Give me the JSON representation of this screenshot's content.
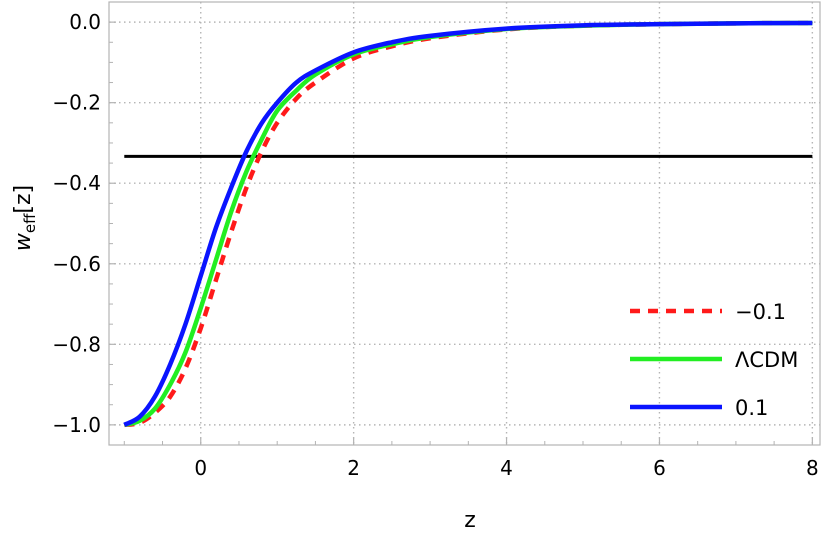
{
  "chart_data": {
    "type": "line",
    "xlabel": "z",
    "ylabel_main": "w",
    "ylabel_sub": "eff",
    "ylabel_suffix": "[z]",
    "xlim": [
      -1.2,
      8.1
    ],
    "ylim": [
      -1.05,
      0.05
    ],
    "grid": true,
    "legend_position": "bottom-right",
    "xticks": [
      0,
      2,
      4,
      6,
      8
    ],
    "xtick_labels": [
      "0",
      "2",
      "4",
      "6",
      "8"
    ],
    "yticks": [
      0.0,
      -0.2,
      -0.4,
      -0.6,
      -0.8,
      -1.0
    ],
    "ytick_labels": [
      "0.0",
      "−0.2",
      "−0.4",
      "−0.6",
      "−0.8",
      "−1.0"
    ],
    "reference_line": {
      "y": -0.3333,
      "x_range": [
        -1.0,
        8.0
      ],
      "color": "#000000"
    },
    "series": [
      {
        "name": "−0.1",
        "color": "#ff1a1a",
        "dash": "dashed",
        "x": [
          -1.0,
          -0.8,
          -0.6,
          -0.4,
          -0.2,
          0.0,
          0.2,
          0.4,
          0.6,
          0.8,
          1.0,
          1.25,
          1.5,
          2.0,
          2.5,
          3.0,
          4.0,
          5.0,
          6.0,
          7.0,
          8.0
        ],
        "y": [
          -1.0,
          -0.995,
          -0.97,
          -0.93,
          -0.86,
          -0.76,
          -0.64,
          -0.52,
          -0.41,
          -0.32,
          -0.25,
          -0.19,
          -0.15,
          -0.09,
          -0.06,
          -0.04,
          -0.018,
          -0.009,
          -0.005,
          -0.003,
          -0.002
        ]
      },
      {
        "name": "ΛCDM",
        "color": "#22ee22",
        "dash": "solid",
        "x": [
          -1.0,
          -0.8,
          -0.6,
          -0.4,
          -0.2,
          0.0,
          0.2,
          0.4,
          0.6,
          0.8,
          1.0,
          1.25,
          1.5,
          2.0,
          2.5,
          3.0,
          4.0,
          5.0,
          6.0,
          7.0,
          8.0
        ],
        "y": [
          -1.0,
          -0.99,
          -0.96,
          -0.9,
          -0.82,
          -0.71,
          -0.59,
          -0.47,
          -0.37,
          -0.29,
          -0.22,
          -0.17,
          -0.13,
          -0.08,
          -0.055,
          -0.037,
          -0.017,
          -0.009,
          -0.005,
          -0.003,
          -0.002
        ]
      },
      {
        "name": "0.1",
        "color": "#0a14ff",
        "dash": "solid",
        "x": [
          -1.0,
          -0.8,
          -0.6,
          -0.4,
          -0.2,
          0.0,
          0.2,
          0.4,
          0.6,
          0.8,
          1.0,
          1.25,
          1.5,
          2.0,
          2.5,
          3.0,
          4.0,
          5.0,
          6.0,
          7.0,
          8.0
        ],
        "y": [
          -1.0,
          -0.98,
          -0.93,
          -0.85,
          -0.75,
          -0.63,
          -0.51,
          -0.41,
          -0.32,
          -0.25,
          -0.2,
          -0.15,
          -0.12,
          -0.075,
          -0.05,
          -0.034,
          -0.016,
          -0.008,
          -0.005,
          -0.003,
          -0.002
        ]
      }
    ]
  }
}
